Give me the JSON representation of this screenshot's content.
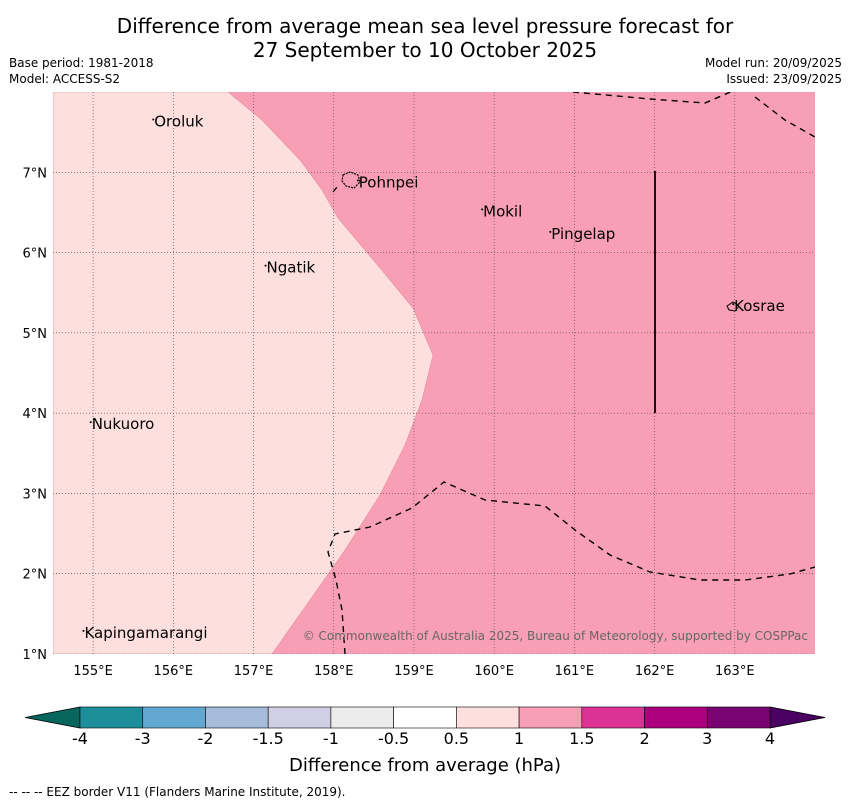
{
  "title": {
    "line1": "Difference from average mean sea level pressure forecast for",
    "line2": "27 September to 10 October 2025"
  },
  "meta": {
    "base_period": "Base period: 1981-2018",
    "model": "Model: ACCESS-S2",
    "model_run": "Model run: 20/09/2025",
    "issued": "Issued: 23/09/2025"
  },
  "map": {
    "extent": {
      "lon_min": 154.5,
      "lon_max": 164.0,
      "lat_min": 1.0,
      "lat_max": 8.0
    },
    "lon_ticks": [
      155,
      156,
      157,
      158,
      159,
      160,
      161,
      162,
      163
    ],
    "lon_tick_labels": [
      "155°E",
      "156°E",
      "157°E",
      "158°E",
      "159°E",
      "160°E",
      "161°E",
      "162°E",
      "163°E"
    ],
    "lat_ticks": [
      1,
      2,
      3,
      4,
      5,
      6,
      7
    ],
    "lat_tick_labels": [
      "1°N",
      "2°N",
      "3°N",
      "4°N",
      "5°N",
      "6°N",
      "7°N"
    ],
    "places": [
      {
        "name": "Oroluk",
        "lon": 155.75,
        "lat": 7.62
      },
      {
        "name": "Pohnpei",
        "lon": 158.3,
        "lat": 6.86
      },
      {
        "name": "Mokil",
        "lon": 159.85,
        "lat": 6.5
      },
      {
        "name": "Pingelap",
        "lon": 160.7,
        "lat": 6.22
      },
      {
        "name": "Ngatik",
        "lon": 157.15,
        "lat": 5.8
      },
      {
        "name": "Kosrae",
        "lon": 162.98,
        "lat": 5.32
      },
      {
        "name": "Nukuoro",
        "lon": 154.97,
        "lat": 3.85
      },
      {
        "name": "Kapingamarangi",
        "lon": 154.88,
        "lat": 1.25
      }
    ],
    "copyright": "© Commonwealth of Australia 2025, Bureau of Meteorology, supported by COSPPac"
  },
  "colorbar": {
    "title": "Difference from average (hPa)",
    "boundaries": [
      "-4",
      "-3",
      "-2",
      "-1.5",
      "-1",
      "-0.5",
      "0.5",
      "1",
      "1.5",
      "2",
      "3",
      "4"
    ],
    "colors": [
      "#1c8f9a",
      "#62a8d1",
      "#a7bbdb",
      "#d1cfe5",
      "#ececec",
      "#ffffff",
      "#fde0de",
      "#f89fb6",
      "#dc3295",
      "#ac007e",
      "#7a0374"
    ],
    "under_color": "#06665e",
    "over_color": "#4a0063"
  },
  "legend": {
    "eez": "--  --  -- EEZ border V11 (Flanders Marine Institute, 2019)."
  },
  "colors": {
    "light_band": "#fde0de",
    "pink_band": "#f89fb6"
  }
}
